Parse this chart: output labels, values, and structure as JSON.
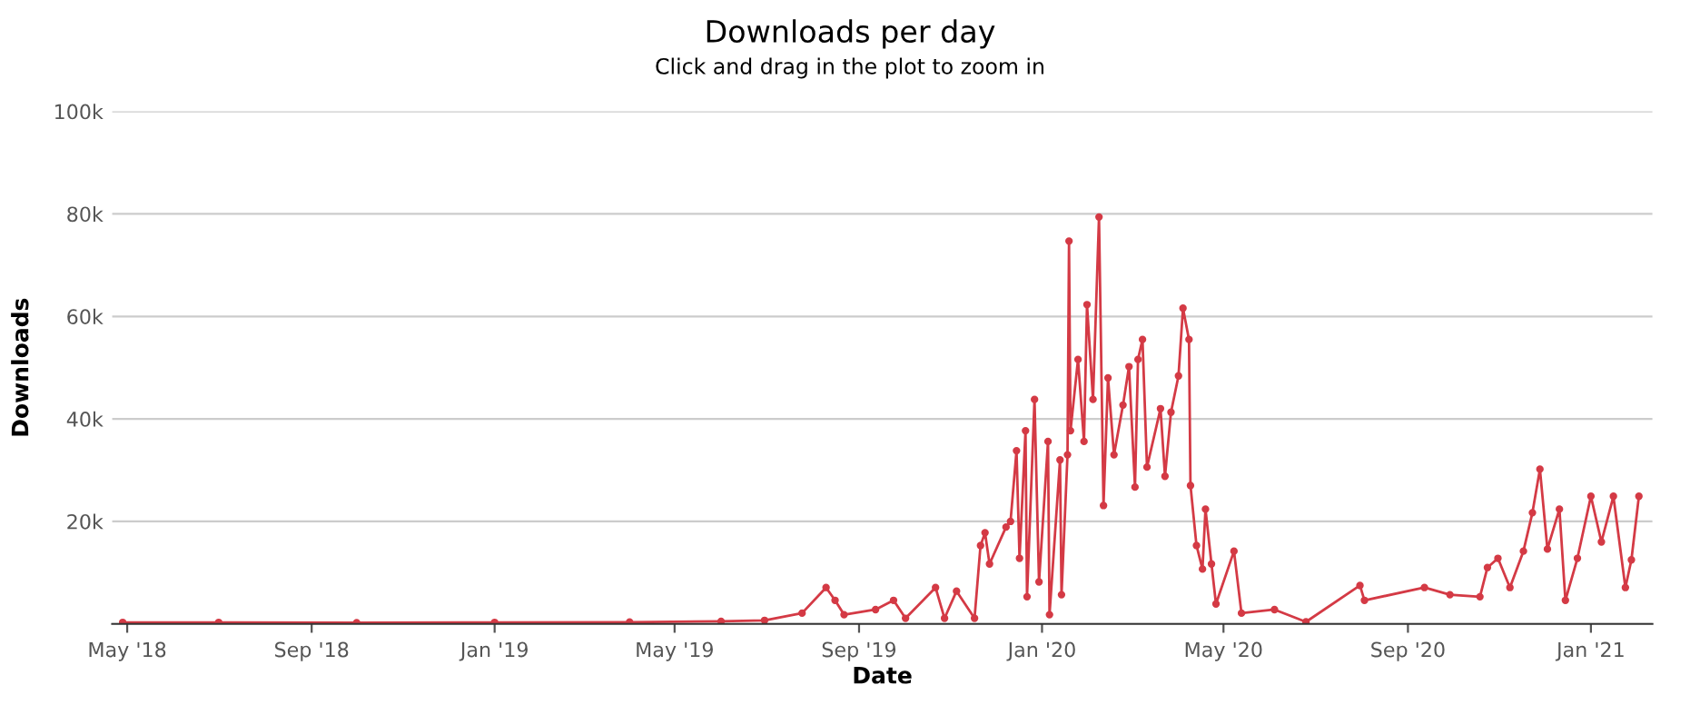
{
  "chart_data": {
    "type": "line",
    "title": "Downloads per day",
    "subtitle": "Click and drag in the plot to zoom in",
    "xlabel": "Date",
    "ylabel": "Downloads",
    "xlim": [
      "2018-04-21",
      "2021-02-11"
    ],
    "xticks": [
      {
        "value": "2018-05-01",
        "label": "May '18"
      },
      {
        "value": "2018-09-01",
        "label": "Sep '18"
      },
      {
        "value": "2019-01-01",
        "label": "Jan '19"
      },
      {
        "value": "2019-05-01",
        "label": "May '19"
      },
      {
        "value": "2019-09-01",
        "label": "Sep '19"
      },
      {
        "value": "2020-01-01",
        "label": "Jan '20"
      },
      {
        "value": "2020-05-01",
        "label": "May '20"
      },
      {
        "value": "2020-09-01",
        "label": "Sep '20"
      },
      {
        "value": "2021-01-01",
        "label": "Jan '21"
      }
    ],
    "ylim": [
      0,
      100000
    ],
    "yticks": [
      {
        "value": 0,
        "label": null
      },
      {
        "value": 20000,
        "label": "20k"
      },
      {
        "value": 40000,
        "label": "40k"
      },
      {
        "value": 60000,
        "label": "60k"
      },
      {
        "value": 80000,
        "label": "80k"
      },
      {
        "value": 100000,
        "label": "100k"
      }
    ],
    "grid": "y",
    "marker": "circle",
    "line_style": "solid",
    "legend": false,
    "series": [
      {
        "color": "#d43a45",
        "x": [
          "2018-04-28",
          "2018-07-01",
          "2018-10-01",
          "2019-01-01",
          "2019-04-01",
          "2019-06-01",
          "2019-06-30",
          "2019-07-25",
          "2019-08-10",
          "2019-08-16",
          "2019-08-22",
          "2019-09-12",
          "2019-09-24",
          "2019-10-02",
          "2019-10-22",
          "2019-10-28",
          "2019-11-05",
          "2019-11-17",
          "2019-11-21",
          "2019-11-24",
          "2019-11-27",
          "2019-12-08",
          "2019-12-11",
          "2019-12-15",
          "2019-12-17",
          "2019-12-21",
          "2019-12-22",
          "2019-12-27",
          "2019-12-30",
          "2020-01-05",
          "2020-01-06",
          "2020-01-13",
          "2020-01-14",
          "2020-01-18",
          "2020-01-19",
          "2020-01-20",
          "2020-01-25",
          "2020-01-29",
          "2020-01-31",
          "2020-02-04",
          "2020-02-08",
          "2020-02-11",
          "2020-02-14",
          "2020-02-18",
          "2020-02-24",
          "2020-02-28",
          "2020-03-03",
          "2020-03-05",
          "2020-03-08",
          "2020-03-11",
          "2020-03-20",
          "2020-03-23",
          "2020-03-27",
          "2020-04-01",
          "2020-04-04",
          "2020-04-08",
          "2020-04-09",
          "2020-04-13",
          "2020-04-17",
          "2020-04-19",
          "2020-04-23",
          "2020-04-26",
          "2020-05-08",
          "2020-05-13",
          "2020-06-04",
          "2020-06-25",
          "2020-07-31",
          "2020-08-03",
          "2020-09-12",
          "2020-09-29",
          "2020-10-19",
          "2020-10-24",
          "2020-10-31",
          "2020-11-08",
          "2020-11-17",
          "2020-11-23",
          "2020-11-28",
          "2020-12-03",
          "2020-12-11",
          "2020-12-15",
          "2020-12-23",
          "2021-01-01",
          "2021-01-08",
          "2021-01-16",
          "2021-01-24",
          "2021-01-28",
          "2021-02-02"
        ],
        "values": [
          300,
          300,
          250,
          300,
          350,
          500,
          700,
          2100,
          7100,
          4600,
          1800,
          2800,
          4600,
          1100,
          7100,
          1100,
          6400,
          1100,
          15300,
          17800,
          11700,
          18900,
          20000,
          33800,
          12800,
          37700,
          5300,
          43800,
          8200,
          35600,
          1800,
          32000,
          5700,
          33000,
          74700,
          37700,
          51600,
          35600,
          62300,
          43800,
          79400,
          23100,
          48000,
          33000,
          42700,
          50200,
          26700,
          51600,
          55500,
          30600,
          42000,
          28800,
          41300,
          48400,
          61600,
          55500,
          27000,
          15300,
          10700,
          22400,
          11700,
          3900,
          14200,
          2100,
          2800,
          400,
          7500,
          4600,
          7100,
          5700,
          5300,
          11000,
          12800,
          7100,
          14200,
          21700,
          30200,
          14600,
          22400,
          4600,
          12800,
          24900,
          16000,
          24900,
          7100,
          12500,
          24900
        ]
      }
    ]
  }
}
